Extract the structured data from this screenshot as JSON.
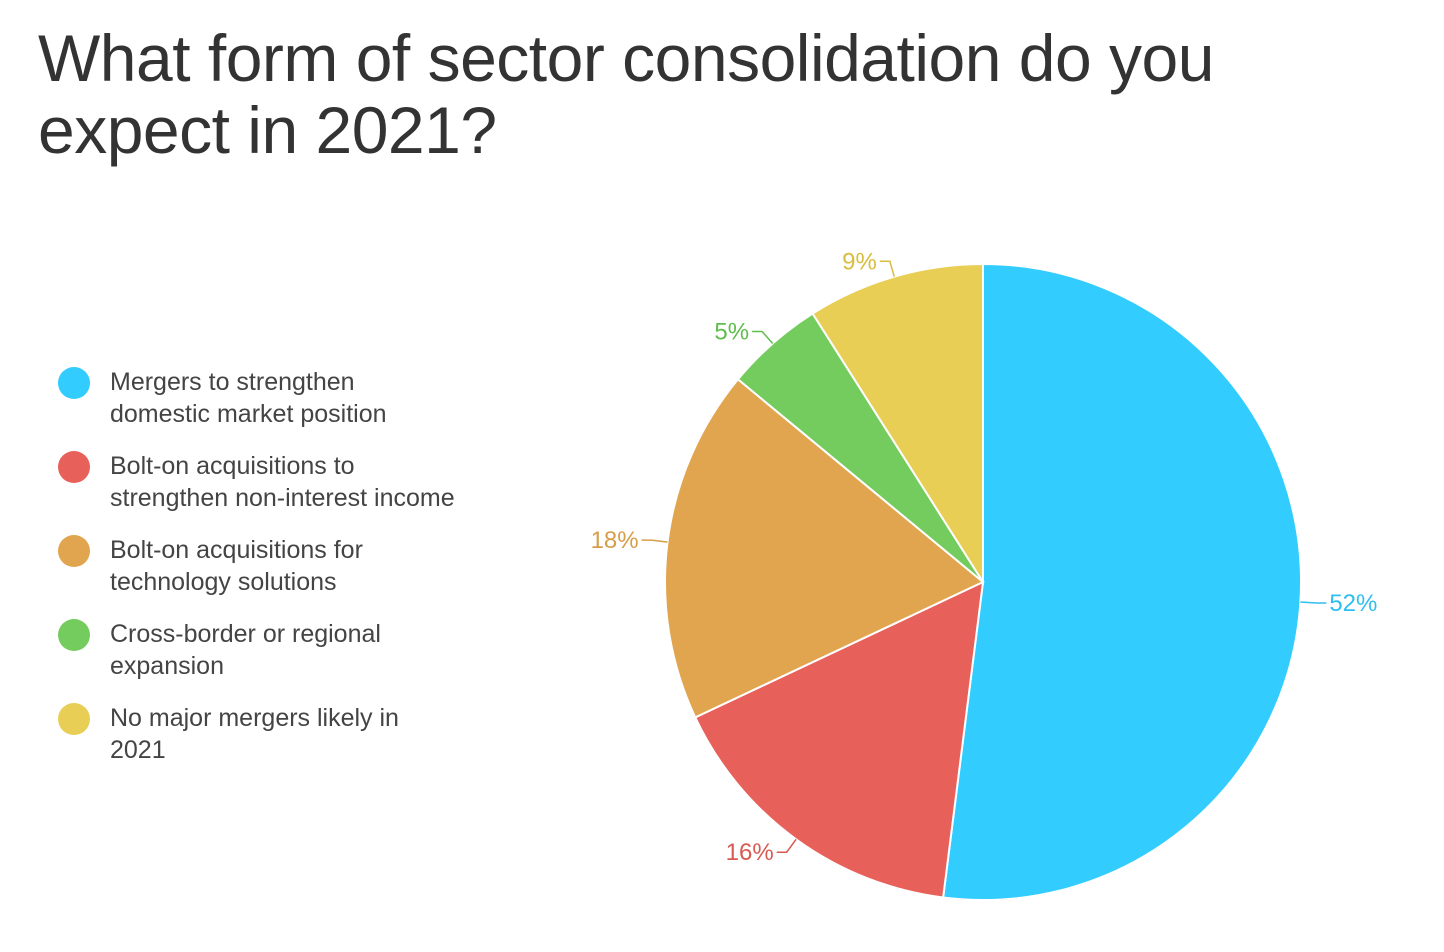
{
  "chart_data": {
    "type": "pie",
    "title": "What form of sector consolidation do you expect in 2021?",
    "unit": "%",
    "legend_position": "left",
    "categories": [
      "Mergers to strengthen domestic market position",
      "Bolt-on acquisitions to strengthen non-interest income",
      "Bolt-on acquisitions for technology solutions",
      "Cross-border or regional expansion",
      "No major mergers likely in 2021"
    ],
    "values": [
      52,
      16,
      18,
      5,
      9
    ],
    "data_labels": [
      "52%",
      "16%",
      "18%",
      "5%",
      "9%"
    ],
    "colors": [
      "#33ccff",
      "#e8605a",
      "#e2a54f",
      "#74cc5e",
      "#e8ce55"
    ],
    "label_colors": [
      "#2fbfee",
      "#d85a52",
      "#d69e48",
      "#5fbd4c",
      "#d9bd3e"
    ]
  }
}
